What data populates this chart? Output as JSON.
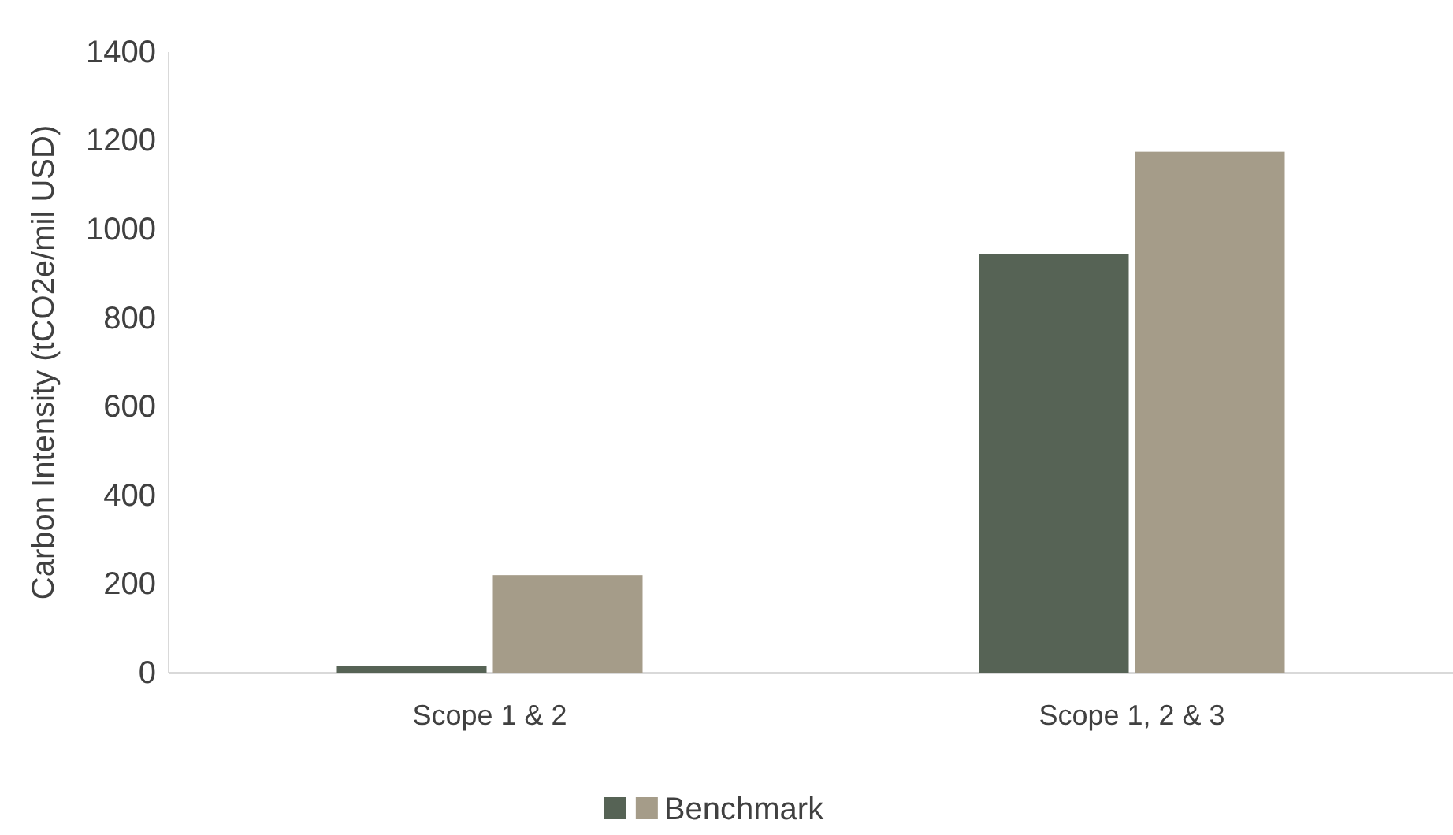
{
  "chart_data": {
    "type": "bar",
    "ylabel": "Carbon Intensity (tCO2e/mil USD)",
    "categories": [
      "Scope 1 & 2",
      "Scope 1, 2 & 3"
    ],
    "series": [
      {
        "color": "#566355",
        "values": [
          15,
          945
        ]
      },
      {
        "name": "Benchmark",
        "color": "#a59c89",
        "values": [
          220,
          1175
        ]
      }
    ],
    "ylim": [
      0,
      1400
    ],
    "yticks": [
      0,
      200,
      400,
      600,
      800,
      1000,
      1200,
      1400
    ],
    "grid": false,
    "legend": "bottom"
  }
}
